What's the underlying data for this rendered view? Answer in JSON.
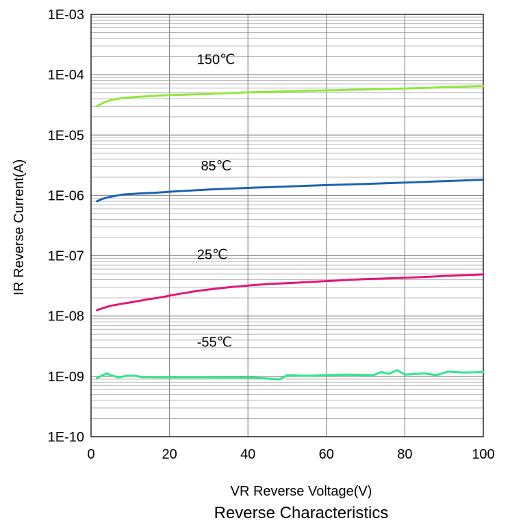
{
  "chart_data": {
    "type": "line",
    "title": "Reverse Characteristics",
    "xlabel": "VR Reverse Voltage(V)",
    "ylabel": "IR Reverse Current(A)",
    "x_scale": "linear",
    "y_scale": "log",
    "xlim": [
      0,
      100
    ],
    "ylim": [
      1e-10,
      0.001
    ],
    "grid": true,
    "x_ticks": [
      0,
      20,
      40,
      60,
      80,
      100
    ],
    "x_tick_labels": [
      "0",
      "20",
      "40",
      "60",
      "80",
      "100"
    ],
    "y_ticks": [
      0.001,
      0.0001,
      1e-05,
      1e-06,
      1e-07,
      1e-08,
      1e-09,
      1e-10
    ],
    "y_tick_labels": [
      "1E-03",
      "1E-04",
      "1E-05",
      "1E-06",
      "1E-07",
      "1E-08",
      "1E-09",
      "1E-10"
    ],
    "series": [
      {
        "name": "150℃",
        "color": "#92e83a",
        "label_at": [
          27,
          0.00015
        ],
        "points": [
          [
            1.5,
            3e-05
          ],
          [
            3,
            3.4e-05
          ],
          [
            5,
            3.8e-05
          ],
          [
            8,
            4.1e-05
          ],
          [
            12,
            4.3e-05
          ],
          [
            20,
            4.6e-05
          ],
          [
            30,
            4.8e-05
          ],
          [
            40,
            5.1e-05
          ],
          [
            50,
            5.3e-05
          ],
          [
            60,
            5.5e-05
          ],
          [
            70,
            5.7e-05
          ],
          [
            80,
            5.9e-05
          ],
          [
            90,
            6.2e-05
          ],
          [
            100,
            6.5e-05
          ]
        ]
      },
      {
        "name": "85℃",
        "color": "#1c62b4",
        "label_at": [
          28,
          2.6e-06
        ],
        "points": [
          [
            1.5,
            8e-07
          ],
          [
            3,
            8.8e-07
          ],
          [
            5,
            9.5e-07
          ],
          [
            8,
            1.03e-06
          ],
          [
            12,
            1.07e-06
          ],
          [
            16,
            1.1e-06
          ],
          [
            20,
            1.15e-06
          ],
          [
            30,
            1.25e-06
          ],
          [
            40,
            1.33e-06
          ],
          [
            50,
            1.4e-06
          ],
          [
            60,
            1.48e-06
          ],
          [
            70,
            1.55e-06
          ],
          [
            80,
            1.63e-06
          ],
          [
            90,
            1.72e-06
          ],
          [
            100,
            1.82e-06
          ]
        ]
      },
      {
        "name": "25℃",
        "color": "#e5157a",
        "label_at": [
          27,
          8.8e-08
        ],
        "points": [
          [
            1.5,
            1.25e-08
          ],
          [
            3,
            1.35e-08
          ],
          [
            5,
            1.48e-08
          ],
          [
            8,
            1.6e-08
          ],
          [
            10,
            1.68e-08
          ],
          [
            14,
            1.87e-08
          ],
          [
            18,
            2.05e-08
          ],
          [
            22,
            2.3e-08
          ],
          [
            27,
            2.6e-08
          ],
          [
            30,
            2.75e-08
          ],
          [
            35,
            3e-08
          ],
          [
            40,
            3.2e-08
          ],
          [
            45,
            3.4e-08
          ],
          [
            50,
            3.5e-08
          ],
          [
            60,
            3.8e-08
          ],
          [
            70,
            4.1e-08
          ],
          [
            80,
            4.3e-08
          ],
          [
            90,
            4.6e-08
          ],
          [
            100,
            4.9e-08
          ]
        ]
      },
      {
        "name": "-55℃",
        "color": "#2ee88a",
        "label_at": [
          27,
          3.1e-09
        ],
        "points": [
          [
            1.5,
            9.3e-10
          ],
          [
            3,
            1.05e-09
          ],
          [
            4,
            1.12e-09
          ],
          [
            5,
            1.05e-09
          ],
          [
            7,
            9.6e-10
          ],
          [
            9,
            1.02e-09
          ],
          [
            11,
            1.03e-09
          ],
          [
            13,
            9.7e-10
          ],
          [
            20,
            9.6e-10
          ],
          [
            30,
            9.6e-10
          ],
          [
            40,
            9.5e-10
          ],
          [
            44,
            9.3e-10
          ],
          [
            48,
            8.9e-10
          ],
          [
            50,
            1.05e-09
          ],
          [
            55,
            1.02e-09
          ],
          [
            60,
            1.05e-09
          ],
          [
            65,
            1.07e-09
          ],
          [
            72,
            1.05e-09
          ],
          [
            74,
            1.18e-09
          ],
          [
            76,
            1.1e-09
          ],
          [
            78,
            1.27e-09
          ],
          [
            80,
            1.07e-09
          ],
          [
            85,
            1.12e-09
          ],
          [
            88,
            1.05e-09
          ],
          [
            91,
            1.2e-09
          ],
          [
            95,
            1.16e-09
          ],
          [
            100,
            1.18e-09
          ]
        ]
      }
    ]
  }
}
